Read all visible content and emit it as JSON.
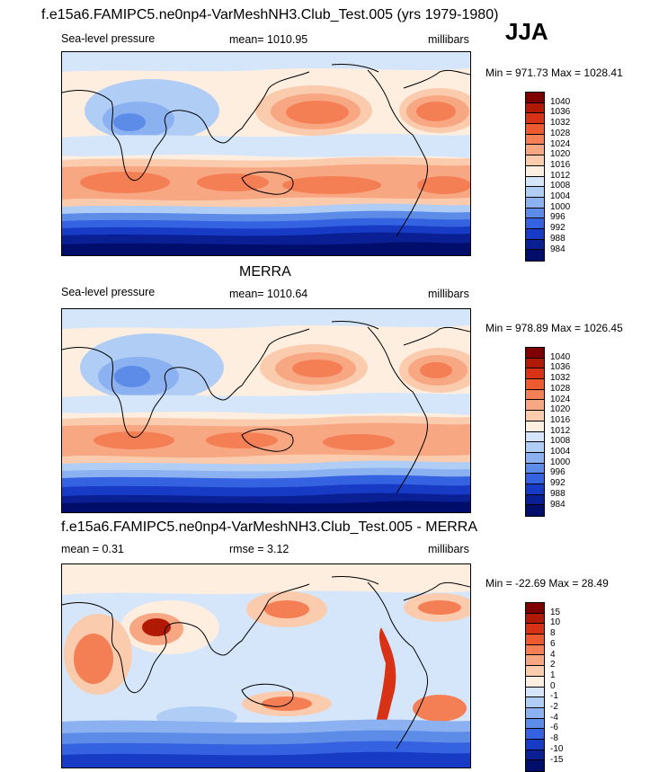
{
  "page": {
    "title": "f.e15a6.FAMIPC5.ne0np4-VarMeshNH3.Club_Test.005 (yrs 1979-1980)",
    "season": "JJA"
  },
  "panels": [
    {
      "id": "model",
      "heading": "",
      "left_label": "Sea-level pressure",
      "center_label": "mean= 1010.95",
      "right_label": "millibars",
      "minmax": "Min = 971.73 Max = 1028.41",
      "colorbar": {
        "labels": [
          "1040",
          "1036",
          "1032",
          "1028",
          "1024",
          "1020",
          "1016",
          "1012",
          "1008",
          "1004",
          "1000",
          "996",
          "992",
          "988",
          "984"
        ],
        "colors": [
          "#7f0000",
          "#b01a05",
          "#d73215",
          "#ed5a2f",
          "#f57f55",
          "#f8a783",
          "#fbcbae",
          "#fdeedf",
          "#d6e6fa",
          "#b0cdf5",
          "#8bb1f0",
          "#5d8ce8",
          "#3462e0",
          "#173bc4",
          "#0a1f94",
          "#000d6b"
        ]
      }
    },
    {
      "id": "obs",
      "heading": "MERRA",
      "left_label": "Sea-level pressure",
      "center_label": "mean= 1010.64",
      "right_label": "millibars",
      "minmax": "Min = 978.89 Max = 1026.45",
      "colorbar": {
        "labels": [
          "1040",
          "1036",
          "1032",
          "1028",
          "1024",
          "1020",
          "1016",
          "1012",
          "1008",
          "1004",
          "1000",
          "996",
          "992",
          "988",
          "984"
        ],
        "colors": [
          "#7f0000",
          "#b01a05",
          "#d73215",
          "#ed5a2f",
          "#f57f55",
          "#f8a783",
          "#fbcbae",
          "#fdeedf",
          "#d6e6fa",
          "#b0cdf5",
          "#8bb1f0",
          "#5d8ce8",
          "#3462e0",
          "#173bc4",
          "#0a1f94",
          "#000d6b"
        ]
      }
    },
    {
      "id": "diff",
      "heading": "f.e15a6.FAMIPC5.ne0np4-VarMeshNH3.Club_Test.005 - MERRA",
      "left_label": "mean =   0.31",
      "center_label": "rmse =   3.12",
      "right_label": "millibars",
      "minmax": "Min = -22.69 Max =  28.49",
      "colorbar": {
        "labels": [
          "15",
          "10",
          "8",
          "6",
          "4",
          "2",
          "1",
          "0",
          "-1",
          "-2",
          "-4",
          "-6",
          "-8",
          "-10",
          "-15"
        ],
        "colors": [
          "#7f0000",
          "#b01a05",
          "#d73215",
          "#ed5a2f",
          "#f57f55",
          "#f8a783",
          "#fbcbae",
          "#fdeedf",
          "#d6e6fa",
          "#b0cdf5",
          "#8bb1f0",
          "#5d8ce8",
          "#3462e0",
          "#173bc4",
          "#0a1f94",
          "#000d6b"
        ]
      }
    }
  ]
}
